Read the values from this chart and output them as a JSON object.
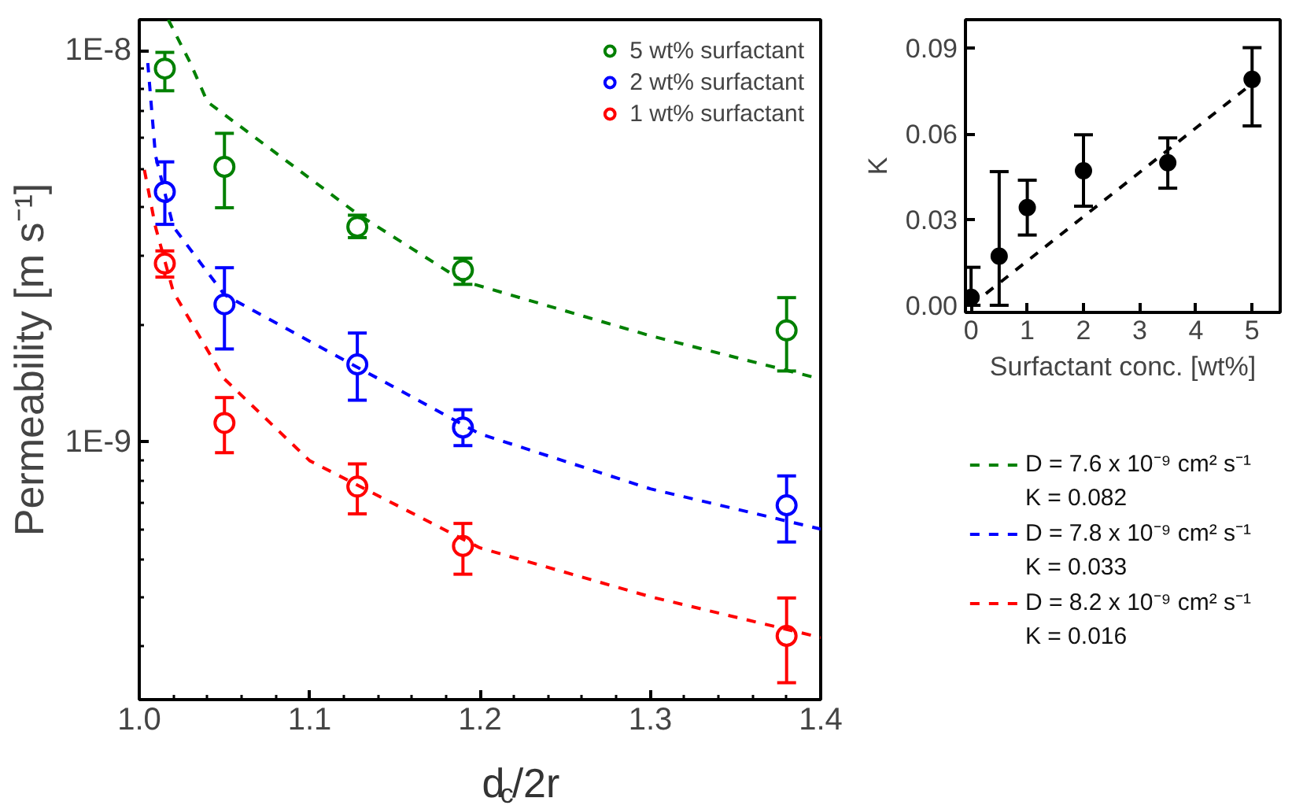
{
  "chart_data": [
    {
      "type": "scatter",
      "xlabel": "d$_{c}$/2r",
      "ylabel": "Permeability [m s⁻¹]",
      "log": "y",
      "grid": false,
      "legend": "top right",
      "marker": "circle",
      "xlim": [
        1.0,
        1.4
      ],
      "ylim": [
        2.2e-10,
        1.2e-08
      ],
      "xticks": [
        {
          "value": 1.0,
          "label": "1.0"
        },
        {
          "value": 1.02,
          "label": null
        },
        {
          "value": 1.04,
          "label": null
        },
        {
          "value": 1.06,
          "label": null
        },
        {
          "value": 1.08,
          "label": null
        },
        {
          "value": 1.1,
          "label": "1.1"
        },
        {
          "value": 1.12,
          "label": null
        },
        {
          "value": 1.14,
          "label": null
        },
        {
          "value": 1.16,
          "label": null
        },
        {
          "value": 1.18,
          "label": null
        },
        {
          "value": 1.2,
          "label": "1.2"
        },
        {
          "value": 1.22,
          "label": null
        },
        {
          "value": 1.24,
          "label": null
        },
        {
          "value": 1.26,
          "label": null
        },
        {
          "value": 1.28,
          "label": null
        },
        {
          "value": 1.3,
          "label": "1.3"
        },
        {
          "value": 1.32,
          "label": null
        },
        {
          "value": 1.34,
          "label": null
        },
        {
          "value": 1.36,
          "label": null
        },
        {
          "value": 1.38,
          "label": null
        },
        {
          "value": 1.4,
          "label": "1.4"
        }
      ],
      "yticks": [
        {
          "value": 3e-10,
          "label": null
        },
        {
          "value": 4e-10,
          "label": null
        },
        {
          "value": 5e-10,
          "label": null
        },
        {
          "value": 6e-10,
          "label": null
        },
        {
          "value": 7e-10,
          "label": null
        },
        {
          "value": 8e-10,
          "label": null
        },
        {
          "value": 9e-10,
          "label": null
        },
        {
          "value": 1e-09,
          "label": "1E-9"
        },
        {
          "value": 2e-09,
          "label": null
        },
        {
          "value": 3e-09,
          "label": null
        },
        {
          "value": 4e-09,
          "label": null
        },
        {
          "value": 5e-09,
          "label": null
        },
        {
          "value": 6e-09,
          "label": null
        },
        {
          "value": 7e-09,
          "label": null
        },
        {
          "value": 8e-09,
          "label": null
        },
        {
          "value": 9e-09,
          "label": null
        },
        {
          "value": 1e-08,
          "label": "1E-8"
        }
      ],
      "series": [
        {
          "type": "scatter",
          "name": "5 wt% surfactant",
          "color": "#008000",
          "x": [
            1.015,
            1.05,
            1.128,
            1.19,
            1.38
          ],
          "values": [
            9e-09,
            5.05e-09,
            3.55e-09,
            2.75e-09,
            1.93e-09
          ],
          "errors": [
            [
              7.9e-09,
              9.9e-09
            ],
            [
              3.97e-09,
              6.15e-09
            ],
            [
              3.33e-09,
              3.8e-09
            ],
            [
              2.53e-09,
              2.95e-09
            ],
            [
              1.52e-09,
              2.34e-09
            ]
          ]
        },
        {
          "type": "scatter",
          "name": "2 wt% surfactant",
          "color": "#0000ff",
          "x": [
            1.015,
            1.05,
            1.128,
            1.19,
            1.38
          ],
          "values": [
            4.36e-09,
            2.25e-09,
            1.58e-09,
            1.09e-09,
            6.9e-10
          ],
          "errors": [
            [
              3.6e-09,
              5.2e-09
            ],
            [
              1.73e-09,
              2.79e-09
            ],
            [
              1.28e-09,
              1.9e-09
            ],
            [
              9.8e-10,
              1.21e-09
            ],
            [
              5.56e-10,
              8.2e-10
            ]
          ]
        },
        {
          "type": "scatter",
          "name": "1 wt% surfactant",
          "color": "#ff0000",
          "x": [
            1.015,
            1.05,
            1.128,
            1.19,
            1.38
          ],
          "values": [
            2.86e-09,
            1.12e-09,
            7.7e-10,
            5.43e-10,
            3.2e-10
          ],
          "errors": [
            [
              2.64e-09,
              3.08e-09
            ],
            [
              9.4e-10,
              1.3e-09
            ],
            [
              6.56e-10,
              8.8e-10
            ],
            [
              4.6e-10,
              6.2e-10
            ],
            [
              2.43e-10,
              4e-10
            ]
          ]
        },
        {
          "type": "line",
          "marker": "none",
          "line_style": "dashed",
          "name": "D = 7.6 x 10⁻⁹ cm² s⁻¹\nK = 0.082",
          "color": "#008000",
          "x": [
            1.017,
            1.03,
            1.04,
            1.128,
            1.19,
            1.3,
            1.4
          ],
          "values": [
            1.2e-08,
            9.3e-09,
            7.4e-09,
            3.83e-09,
            2.58e-09,
            1.87e-09,
            1.45e-09
          ]
        },
        {
          "type": "line",
          "marker": "none",
          "line_style": "dashed",
          "name": "D = 7.8 x 10⁻⁹ cm² s⁻¹\nK = 0.033",
          "color": "#0000ff",
          "x": [
            1.005,
            1.0095,
            1.02,
            1.05,
            1.1,
            1.2,
            1.3,
            1.4
          ],
          "values": [
            9.3e-09,
            5.4e-09,
            3.55e-09,
            2.38e-09,
            1.81e-09,
            1.05e-09,
            7.6e-10,
            6e-10
          ]
        },
        {
          "type": "line",
          "marker": "none",
          "line_style": "dashed",
          "name": "D = 8.2 x 10⁻⁹ cm² s⁻¹\nK = 0.016",
          "color": "#ff0000",
          "x": [
            1.003,
            1.0095,
            1.02,
            1.05,
            1.1,
            1.2,
            1.3,
            1.4
          ],
          "values": [
            4.96e-09,
            3.55e-09,
            2.42e-09,
            1.45e-09,
            8.97e-10,
            5.37e-10,
            4.03e-10,
            3.17e-10
          ]
        }
      ]
    },
    {
      "type": "scatter",
      "xlabel": "Surfactant conc. [wt%]",
      "ylabel": "K",
      "grid": false,
      "marker": "circle",
      "xlim": [
        -0.1,
        5.5
      ],
      "ylim": [
        -0.0025,
        0.1
      ],
      "xticks": [
        0,
        1,
        2,
        3,
        4,
        5
      ],
      "yticks": [
        {
          "value": 0,
          "label": "0.00"
        },
        {
          "value": 0.03,
          "label": "0.03"
        },
        {
          "value": 0.06,
          "label": "0.06"
        },
        {
          "value": 0.09,
          "label": "0.09"
        }
      ],
      "series": [
        {
          "type": "scatter",
          "color": "#000000",
          "x": [
            0,
            0.5,
            1,
            2,
            3.5,
            5
          ],
          "values": [
            0.0028,
            0.0172,
            0.0342,
            0.0471,
            0.0499,
            0.0791
          ],
          "errors": [
            [
              0.0,
              0.0133
            ],
            [
              0.0,
              0.0468
            ],
            [
              0.0246,
              0.0438
            ],
            [
              0.0347,
              0.0597
            ],
            [
              0.041,
              0.0586
            ],
            [
              0.0628,
              0.0902
            ]
          ]
        },
        {
          "type": "line",
          "marker": "none",
          "line_style": "dashed",
          "color": "#000000",
          "x": [
            0,
            5
          ],
          "values": [
            0.0,
            0.0776
          ]
        }
      ]
    }
  ]
}
